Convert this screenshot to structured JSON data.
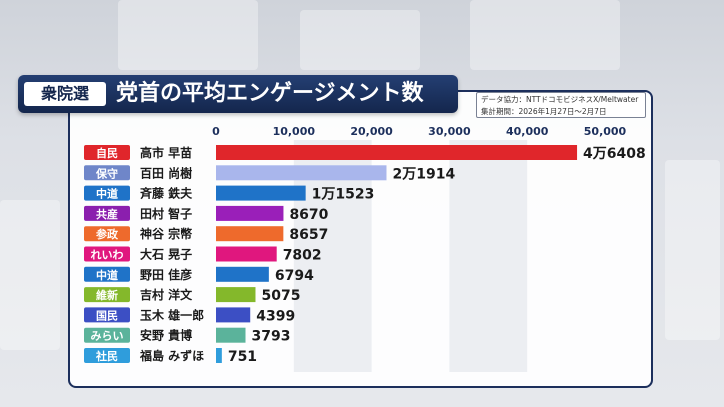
{
  "title": {
    "tag": "衆院選",
    "text": "党首の平均エンゲージメント数"
  },
  "source": {
    "line1": "データ協力：NTTドコモビジネスX/Meltwater",
    "line2": "集計期間：2026年1月27日〜2月7日"
  },
  "chart_data": {
    "type": "bar",
    "orientation": "horizontal",
    "title": "党首の平均エンゲージメント数",
    "xlim": [
      0,
      50000
    ],
    "ticks": [
      0,
      10000,
      20000,
      30000,
      40000,
      50000
    ],
    "tick_labels": [
      "0",
      "10,000",
      "20,000",
      "30,000",
      "40,000",
      "50,000"
    ],
    "categories": [
      "高市 早苗",
      "百田 尚樹",
      "斉藤 鉄夫",
      "田村 智子",
      "神谷 宗幣",
      "大石 晃子",
      "野田 佳彦",
      "吉村 洋文",
      "玉木 雄一郎",
      "安野 貴博",
      "福島 みずほ"
    ],
    "parties": [
      "自民",
      "保守",
      "中道",
      "共産",
      "参政",
      "れいわ",
      "中道",
      "維新",
      "国民",
      "みらい",
      "社民"
    ],
    "values": [
      46408,
      21914,
      11523,
      8670,
      8657,
      7802,
      6794,
      5075,
      4399,
      3793,
      751
    ],
    "value_labels": [
      "4万6408",
      "2万1914",
      "1万1523",
      "8670",
      "8657",
      "7802",
      "6794",
      "5075",
      "4399",
      "3793",
      "751"
    ],
    "party_colors": [
      "#e0262b",
      "#6f86c9",
      "#1f73c8",
      "#8b1fae",
      "#ee6a2c",
      "#e0177e",
      "#1f73c8",
      "#84b82b",
      "#3c4fc4",
      "#5bb39b",
      "#2f9ddc"
    ],
    "bar_colors": [
      "#e0262b",
      "#a9b6ec",
      "#1f73c8",
      "#9a1fb9",
      "#ee6a2c",
      "#e0177e",
      "#1f73c8",
      "#84b82b",
      "#3c4fc4",
      "#5bb39b",
      "#2f9ddc"
    ],
    "grid": true
  }
}
